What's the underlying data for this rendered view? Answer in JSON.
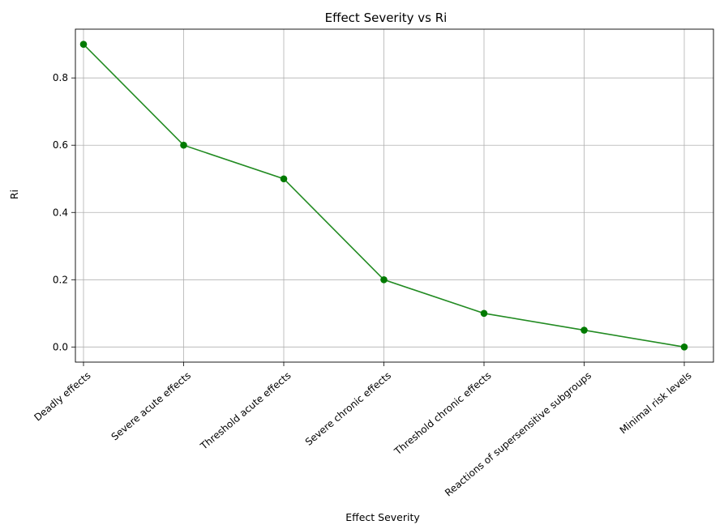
{
  "chart_data": {
    "type": "line",
    "title": "Effect Severity vs Ri",
    "xlabel": "Effect Severity",
    "ylabel": "Ri",
    "categories": [
      "Deadly effects",
      "Severe acute effects",
      "Threshold acute effects",
      "Severe chronic effects",
      "Threshold chronic effects",
      "Reactions of supersensitive subgroups",
      "Minimal risk levels"
    ],
    "series": [
      {
        "values": [
          0.9,
          0.6,
          0.5,
          0.2,
          0.1,
          0.05,
          0.0
        ]
      }
    ],
    "ylim": [
      -0.045,
      0.945
    ],
    "yticks": [
      "0.0",
      "0.2",
      "0.4",
      "0.6",
      "0.8"
    ],
    "grid": true,
    "line_color": "#228b22",
    "marker_color": "#007a00"
  }
}
